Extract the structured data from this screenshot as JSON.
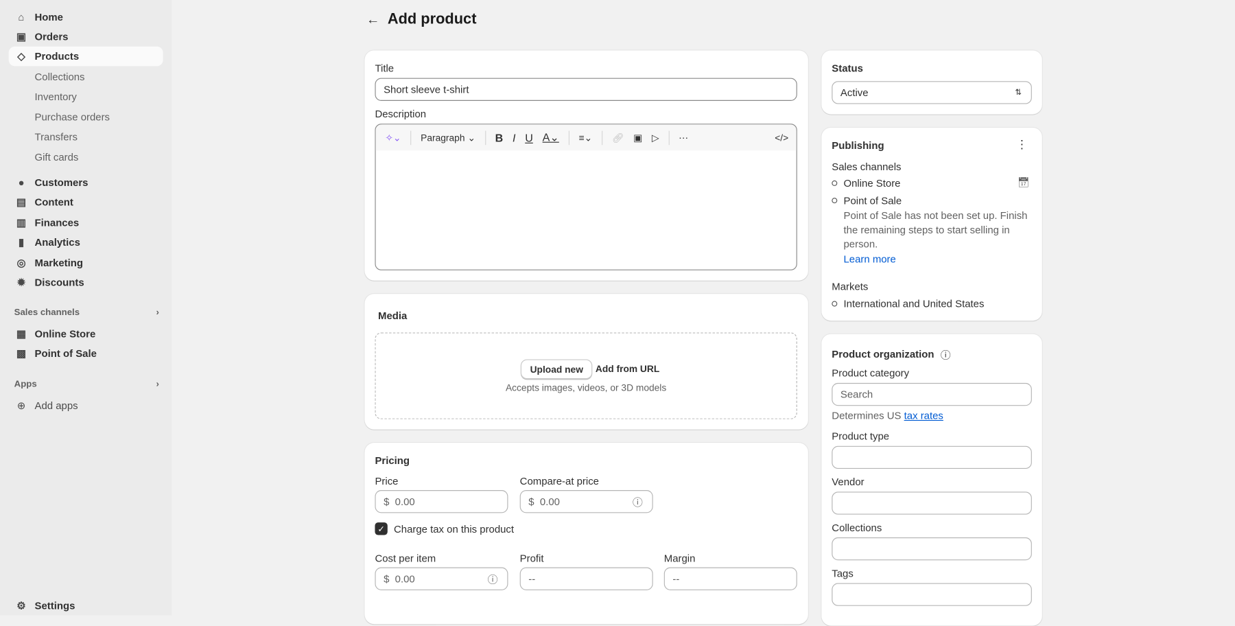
{
  "sidebar": {
    "items": [
      {
        "label": "Home",
        "icon": "home-icon"
      },
      {
        "label": "Orders",
        "icon": "inbox-icon"
      },
      {
        "label": "Products",
        "icon": "tag-icon",
        "active": true
      }
    ],
    "product_sub": [
      "Collections",
      "Inventory",
      "Purchase orders",
      "Transfers",
      "Gift cards"
    ],
    "items2": [
      {
        "label": "Customers",
        "icon": "person-icon"
      },
      {
        "label": "Content",
        "icon": "image-icon"
      },
      {
        "label": "Finances",
        "icon": "bank-icon"
      },
      {
        "label": "Analytics",
        "icon": "bar-chart-icon"
      },
      {
        "label": "Marketing",
        "icon": "target-icon"
      },
      {
        "label": "Discounts",
        "icon": "discount-icon"
      }
    ],
    "sales_channels": "Sales channels",
    "channels": [
      "Online Store",
      "Point of Sale"
    ],
    "apps": "Apps",
    "add_apps": "Add apps",
    "settings": "Settings"
  },
  "page": {
    "title": "Add product"
  },
  "product": {
    "title_label": "Title",
    "title_value": "Short sleeve t-shirt",
    "description_label": "Description",
    "paragraph": "Paragraph"
  },
  "media": {
    "title": "Media",
    "upload": "Upload new",
    "add_url": "Add from URL",
    "hint": "Accepts images, videos, or 3D models"
  },
  "pricing": {
    "title": "Pricing",
    "price_label": "Price",
    "price": "0.00",
    "compare_label": "Compare-at price",
    "compare": "0.00",
    "currency": "$",
    "charge_tax": "Charge tax on this product",
    "charge_tax_checked": true,
    "cost_label": "Cost per item",
    "cost": "0.00",
    "profit_label": "Profit",
    "profit": "--",
    "margin_label": "Margin",
    "margin": "--"
  },
  "status": {
    "title": "Status",
    "value": "Active"
  },
  "publishing": {
    "title": "Publishing",
    "sales_channels": "Sales channels",
    "channels": [
      "Online Store",
      "Point of Sale"
    ],
    "pos_note": "Point of Sale has not been set up. Finish the remaining steps to start selling in person.",
    "learn_more": "Learn more",
    "markets": "Markets",
    "market": "International and United States"
  },
  "organization": {
    "title": "Product organization",
    "category_label": "Product category",
    "category_placeholder": "Search",
    "tax_note": "Determines US",
    "tax_link": "tax rates",
    "type_label": "Product type",
    "vendor_label": "Vendor",
    "collections_label": "Collections",
    "tags_label": "Tags"
  },
  "colors": {
    "link": "#005bd3",
    "ai_accent": "#8a5cf6"
  }
}
